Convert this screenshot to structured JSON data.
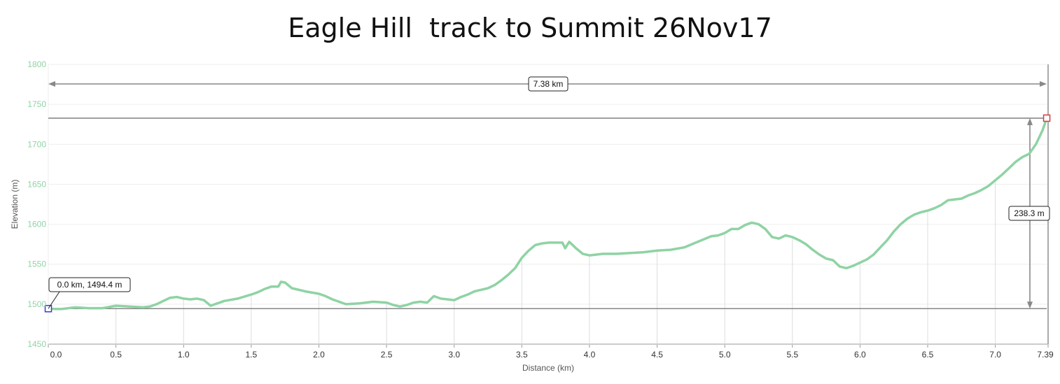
{
  "chart_data": {
    "type": "line",
    "title": "Eagle Hill  track to Summit 26Nov17",
    "xlabel": "Distance (km)",
    "ylabel": "Elevation (m)",
    "xlim": [
      0,
      7.39
    ],
    "ylim": [
      1450,
      1800
    ],
    "x_ticks": [
      0.0,
      0.5,
      1.0,
      1.5,
      2.0,
      2.5,
      3.0,
      3.5,
      4.0,
      4.5,
      5.0,
      5.5,
      6.0,
      6.5,
      7.0,
      7.39
    ],
    "x_tick_labels": [
      "0.0",
      "0.5",
      "1.0",
      "1.5",
      "2.0",
      "2.5",
      "3.0",
      "3.5",
      "4.0",
      "4.5",
      "5.0",
      "5.5",
      "6.0",
      "6.5",
      "7.0",
      "7.39"
    ],
    "y_ticks": [
      1450,
      1500,
      1550,
      1600,
      1650,
      1700,
      1750,
      1800
    ],
    "grid": true,
    "line_color": "#8fd3a4",
    "series": [
      {
        "x": [
          0.0,
          0.05,
          0.1,
          0.2,
          0.3,
          0.4,
          0.5,
          0.6,
          0.7,
          0.75,
          0.8,
          0.85,
          0.9,
          0.95,
          1.0,
          1.05,
          1.1,
          1.15,
          1.2,
          1.25,
          1.3,
          1.4,
          1.5,
          1.55,
          1.6,
          1.65,
          1.7,
          1.72,
          1.75,
          1.8,
          1.9,
          2.0,
          2.05,
          2.1,
          2.2,
          2.3,
          2.4,
          2.5,
          2.55,
          2.6,
          2.65,
          2.7,
          2.75,
          2.8,
          2.85,
          2.9,
          3.0,
          3.05,
          3.1,
          3.15,
          3.2,
          3.25,
          3.3,
          3.35,
          3.4,
          3.45,
          3.5,
          3.55,
          3.6,
          3.65,
          3.7,
          3.75,
          3.8,
          3.82,
          3.85,
          3.9,
          3.95,
          4.0,
          4.1,
          4.2,
          4.3,
          4.4,
          4.5,
          4.6,
          4.7,
          4.8,
          4.9,
          4.95,
          5.0,
          5.05,
          5.1,
          5.15,
          5.2,
          5.25,
          5.3,
          5.35,
          5.4,
          5.45,
          5.5,
          5.55,
          5.6,
          5.65,
          5.7,
          5.75,
          5.8,
          5.85,
          5.9,
          5.95,
          6.0,
          6.05,
          6.1,
          6.15,
          6.2,
          6.25,
          6.3,
          6.35,
          6.4,
          6.45,
          6.5,
          6.55,
          6.6,
          6.65,
          6.7,
          6.75,
          6.8,
          6.85,
          6.9,
          6.95,
          7.0,
          7.05,
          7.1,
          7.15,
          7.2,
          7.25,
          7.3,
          7.35,
          7.38
        ],
        "y": [
          1494.4,
          1494,
          1494,
          1496,
          1495,
          1495,
          1498,
          1497,
          1496,
          1497,
          1500,
          1504,
          1508,
          1509,
          1507,
          1506,
          1507,
          1505,
          1498,
          1501,
          1504,
          1507,
          1512,
          1515,
          1519,
          1522,
          1522,
          1528,
          1527,
          1520,
          1516,
          1513,
          1510,
          1506,
          1500,
          1501,
          1503,
          1502,
          1499,
          1497,
          1499,
          1502,
          1503,
          1502,
          1510,
          1507,
          1505,
          1509,
          1512,
          1516,
          1518,
          1520,
          1524,
          1530,
          1537,
          1545,
          1558,
          1567,
          1574,
          1576,
          1577,
          1577,
          1577,
          1570,
          1578,
          1570,
          1563,
          1561,
          1563,
          1563,
          1564,
          1565,
          1567,
          1568,
          1571,
          1578,
          1585,
          1586,
          1589,
          1594,
          1594,
          1599,
          1602,
          1600,
          1594,
          1584,
          1582,
          1586,
          1584,
          1580,
          1575,
          1568,
          1562,
          1557,
          1555,
          1547,
          1545,
          1548,
          1552,
          1556,
          1562,
          1571,
          1580,
          1591,
          1600,
          1607,
          1612,
          1615,
          1617,
          1620,
          1624,
          1630,
          1631,
          1632,
          1636,
          1639,
          1643,
          1648,
          1655,
          1662,
          1670,
          1678,
          1684,
          1688,
          1700,
          1718,
          1732.7
        ]
      }
    ],
    "annotations": {
      "start_label": "0.0 km, 1494.4 m",
      "distance_label": "7.38 km",
      "gain_label": "238.3 m"
    },
    "markers": {
      "start": {
        "x": 0.0,
        "y": 1494.4,
        "color": "#3b3bd6"
      },
      "end": {
        "x": 7.38,
        "y": 1732.7,
        "color": "#d93b3b"
      }
    }
  }
}
